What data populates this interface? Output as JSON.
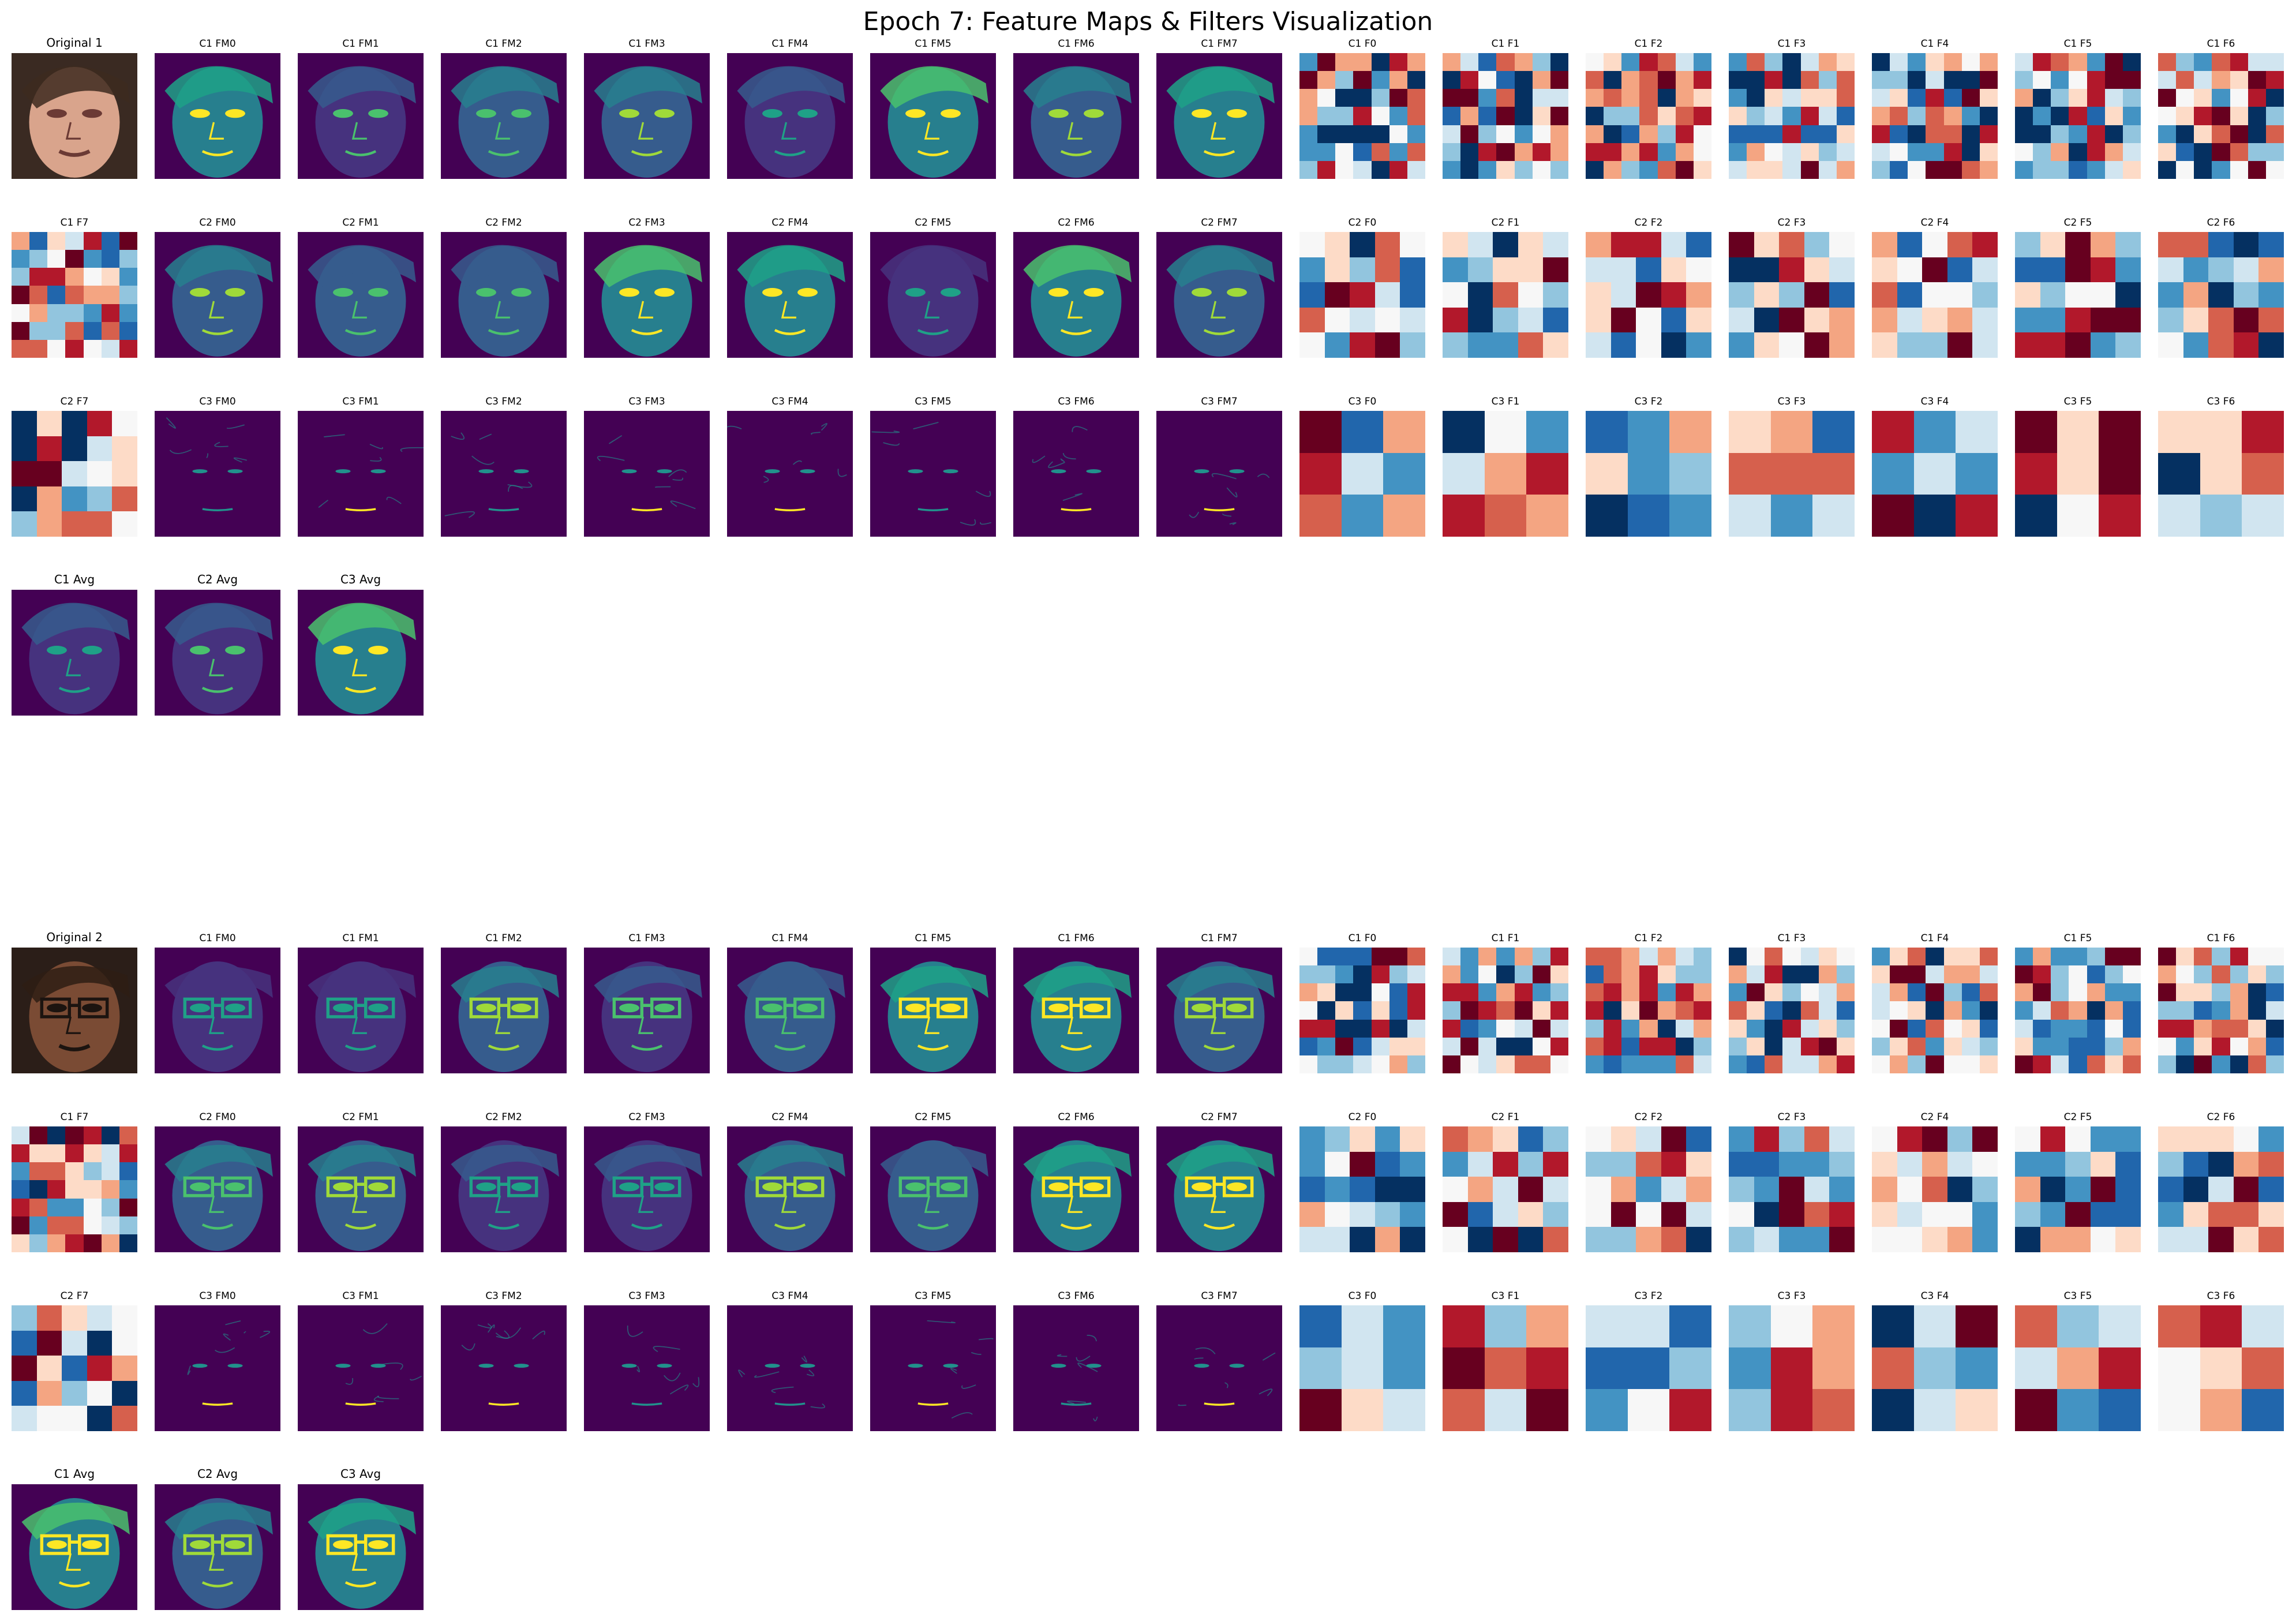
{
  "figure": {
    "title": "Epoch 7: Feature Maps & Filters Visualization",
    "colormaps": {
      "feature_maps": "viridis",
      "filters": "RdBu",
      "original": "rgb"
    }
  },
  "samples": [
    {
      "rows": [
        [
          "Original 1",
          "C1 FM0",
          "C1 FM1",
          "C1 FM2",
          "C1 FM3",
          "C1 FM4",
          "C1 FM5",
          "C1 FM6",
          "C1 FM7",
          "C1 F0",
          "C1 F1",
          "C1 F2",
          "C1 F3",
          "C1 F4",
          "C1 F5",
          "C1 F6"
        ],
        [
          "C1 F7",
          "C2 FM0",
          "C2 FM1",
          "C2 FM2",
          "C2 FM3",
          "C2 FM4",
          "C2 FM5",
          "C2 FM6",
          "C2 FM7",
          "C2 F0",
          "C2 F1",
          "C2 F2",
          "C2 F3",
          "C2 F4",
          "C2 F5",
          "C2 F6"
        ],
        [
          "C2 F7",
          "C3 FM0",
          "C3 FM1",
          "C3 FM2",
          "C3 FM3",
          "C3 FM4",
          "C3 FM5",
          "C3 FM6",
          "C3 FM7",
          "C3 F0",
          "C3 F1",
          "C3 F2",
          "C3 F3",
          "C3 F4",
          "C3 F5",
          "C3 F6"
        ],
        [
          "C1 Avg",
          "C2 Avg",
          "C3 Avg"
        ]
      ]
    },
    {
      "rows": [
        [
          "Original 2",
          "C1 FM0",
          "C1 FM1",
          "C1 FM2",
          "C1 FM3",
          "C1 FM4",
          "C1 FM5",
          "C1 FM6",
          "C1 FM7",
          "C1 F0",
          "C1 F1",
          "C1 F2",
          "C1 F3",
          "C1 F4",
          "C1 F5",
          "C1 F6"
        ],
        [
          "C1 F7",
          "C2 FM0",
          "C2 FM1",
          "C2 FM2",
          "C2 FM3",
          "C2 FM4",
          "C2 FM5",
          "C2 FM6",
          "C2 FM7",
          "C2 F0",
          "C2 F1",
          "C2 F2",
          "C2 F3",
          "C2 F4",
          "C2 F5",
          "C2 F6"
        ],
        [
          "C2 F7",
          "C3 FM0",
          "C3 FM1",
          "C3 FM2",
          "C3 FM3",
          "C3 FM4",
          "C3 FM5",
          "C3 FM6",
          "C3 FM7",
          "C3 F0",
          "C3 F1",
          "C3 F2",
          "C3 F3",
          "C3 F4",
          "C3 F5",
          "C3 F6"
        ],
        [
          "C1 Avg",
          "C2 Avg",
          "C3 Avg"
        ]
      ]
    }
  ]
}
